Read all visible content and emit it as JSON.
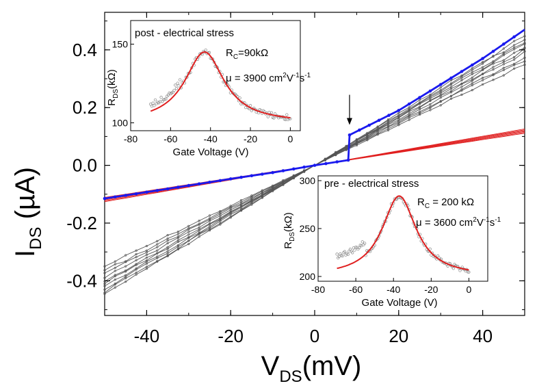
{
  "chart_data": [
    {
      "type": "line",
      "xlabel": "V",
      "xlabel_sub": "DS",
      "xlabel_unit": "(mV)",
      "ylabel": "I",
      "ylabel_sub": "DS",
      "ylabel_unit": " (µA)",
      "xlim": [
        -50,
        50
      ],
      "ylim": [
        -0.52,
        0.53
      ],
      "xticks": [
        -40,
        -20,
        0,
        20,
        40
      ],
      "xtick_labels": [
        "-40",
        "-20",
        "0",
        "20",
        "40"
      ],
      "yticks": [
        -0.4,
        -0.2,
        0.0,
        0.2,
        0.4
      ],
      "ytick_labels": [
        "-0.4",
        "-0.2",
        "0.0",
        "0.2",
        "0.4"
      ],
      "colors": {
        "gray": "#555555",
        "red": "#e02020",
        "blue": "#1a1aee"
      },
      "gray_slopes": [
        0.007,
        0.0073,
        0.0075,
        0.0078,
        0.008,
        0.0082,
        0.0084,
        0.0086,
        0.0088,
        0.009
      ],
      "red_slopes": [
        0.00222,
        0.00228,
        0.00234,
        0.0024,
        0.00246,
        0.00252
      ],
      "blue_series": {
        "x": [
          -50,
          -40,
          -30,
          -20,
          -10,
          0,
          8,
          8.3,
          20,
          30,
          40,
          50
        ],
        "y": [
          -0.115,
          -0.093,
          -0.07,
          -0.047,
          -0.025,
          0.0,
          0.018,
          0.105,
          0.19,
          0.28,
          0.37,
          0.47
        ]
      },
      "arrow_at": {
        "x": 8.3,
        "y": 0.14
      }
    },
    {
      "type": "scatter",
      "title": "post - electrical stress",
      "annotation_rc_main": "R",
      "annotation_rc_sub": "C",
      "annotation_rc_value": "=90kΩ",
      "annotation_mu_symbol": "μ",
      "annotation_mu_value": " = 3900 cm",
      "annotation_mu_unit_tail": "s",
      "xlabel": "Gate Voltage (V)",
      "ylabel_main": "R",
      "ylabel_sub": "DS",
      "ylabel_unit": "(kΩ)",
      "xlim": [
        -80,
        5
      ],
      "ylim": [
        95,
        165
      ],
      "xticks": [
        -80,
        -60,
        -40,
        -20,
        0
      ],
      "xtick_labels": [
        "-80",
        "-60",
        "-40",
        "-20",
        "0"
      ],
      "yticks": [
        100,
        150
      ],
      "ytick_labels": [
        "100",
        "150"
      ],
      "fit": {
        "peak_x": -43,
        "peak_y": 145,
        "base": 100,
        "width": 12,
        "x_range": [
          -70,
          0
        ]
      },
      "points": {
        "x_range": [
          -70,
          0
        ],
        "count": 120
      }
    },
    {
      "type": "scatter",
      "title": "pre - electrical stress",
      "annotation_rc_main": "R",
      "annotation_rc_sub": "C",
      "annotation_rc_value": " = 200 kΩ",
      "annotation_mu_symbol": "μ",
      "annotation_mu_value": " = 3600 cm",
      "annotation_mu_unit_tail": "s",
      "xlabel": "Gate Voltage (V)",
      "ylabel_main": "R",
      "ylabel_sub": "DS",
      "ylabel_unit": "(kΩ)",
      "xlim": [
        -80,
        10
      ],
      "ylim": [
        195,
        305
      ],
      "xticks": [
        -80,
        -60,
        -40,
        -20,
        0
      ],
      "xtick_labels": [
        "-80",
        "-60",
        "-40",
        "-20",
        "0"
      ],
      "yticks": [
        200,
        250,
        300
      ],
      "ytick_labels": [
        "200",
        "250",
        "300"
      ],
      "fit": {
        "peak_x": -37,
        "peak_y": 284,
        "base": 200,
        "width": 11,
        "x_range": [
          -70,
          0
        ]
      },
      "points": {
        "x_range": [
          -70,
          0
        ],
        "count": 120
      }
    }
  ]
}
